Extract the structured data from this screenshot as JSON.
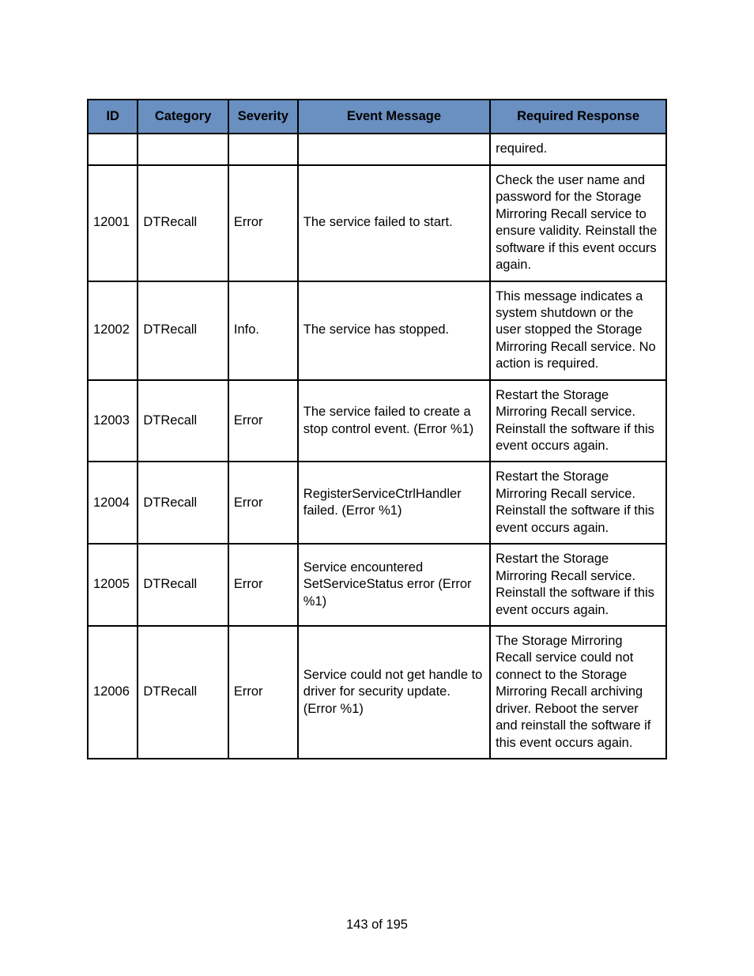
{
  "table": {
    "header_bg": "#6a8fc1",
    "border_color": "#000000",
    "columns": [
      {
        "key": "id",
        "label": "ID"
      },
      {
        "key": "category",
        "label": "Category"
      },
      {
        "key": "severity",
        "label": "Severity"
      },
      {
        "key": "message",
        "label": "Event Message"
      },
      {
        "key": "response",
        "label": "Required Response"
      }
    ],
    "rows": [
      {
        "id": "",
        "category": "",
        "severity": "",
        "message": "",
        "response": "required."
      },
      {
        "id": "12001",
        "category": "DTRecall",
        "severity": "Error",
        "message": "The service failed to start.",
        "response": "Check the user name and password for the Storage Mirroring Recall service to ensure validity. Reinstall the software if this event occurs again."
      },
      {
        "id": "12002",
        "category": "DTRecall",
        "severity": "Info.",
        "message": "The service has stopped.",
        "response": "This message indicates a system shutdown or the user stopped the Storage Mirroring Recall service. No action is required."
      },
      {
        "id": "12003",
        "category": "DTRecall",
        "severity": "Error",
        "message": "The service failed to create a stop control event. (Error %1)",
        "response": "Restart the Storage Mirroring Recall service. Reinstall the software if this event occurs again."
      },
      {
        "id": "12004",
        "category": "DTRecall",
        "severity": "Error",
        "message": "RegisterServiceCtrlHandler failed. (Error %1)",
        "response": "Restart the Storage Mirroring Recall service. Reinstall the software if this event occurs again."
      },
      {
        "id": "12005",
        "category": "DTRecall",
        "severity": "Error",
        "message": "Service encountered SetServiceStatus error (Error %1)",
        "response": "Restart the Storage Mirroring Recall service. Reinstall the software if this event occurs again."
      },
      {
        "id": "12006",
        "category": "DTRecall",
        "severity": "Error",
        "message": "Service could not get handle to driver for security update. (Error %1)",
        "response": "The Storage Mirroring Recall service could not connect to the Storage Mirroring Recall archiving driver. Reboot the server and reinstall the software if this event occurs again."
      }
    ]
  },
  "page_number": "143 of 195"
}
